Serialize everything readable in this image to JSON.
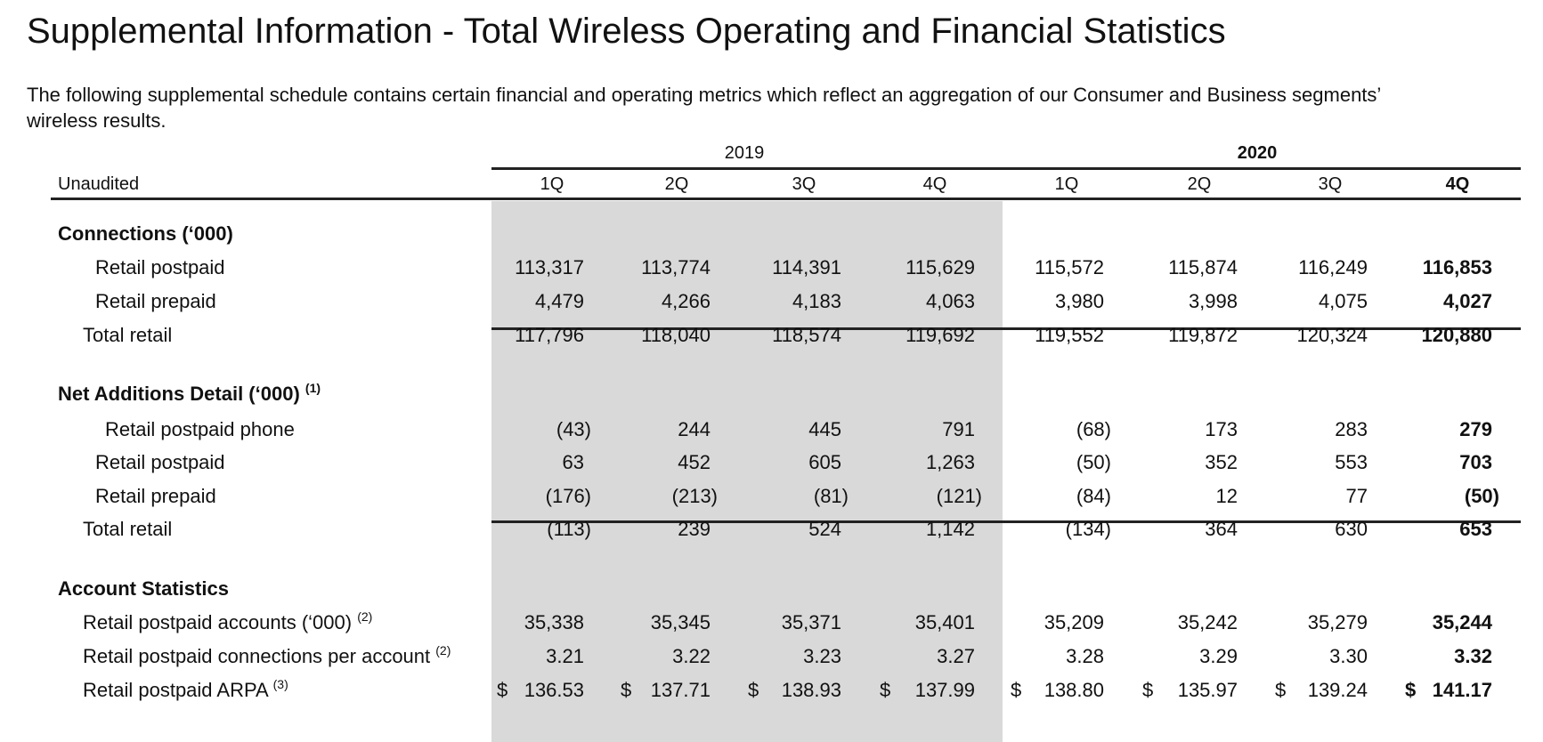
{
  "title": "Supplemental Information - Total Wireless Operating and Financial Statistics",
  "intro": {
    "line1": "The following supplemental schedule contains certain financial and operating metrics which reflect an aggregation of our Consumer and Business segments’",
    "line2": "wireless results."
  },
  "table": {
    "unaudited_label": "Unaudited",
    "years": [
      {
        "label": "2019",
        "bold": false
      },
      {
        "label": "2020",
        "bold": true
      }
    ],
    "quarters": [
      {
        "label": "1Q",
        "year": "2019",
        "bold": false
      },
      {
        "label": "2Q",
        "year": "2019",
        "bold": false
      },
      {
        "label": "3Q",
        "year": "2019",
        "bold": false
      },
      {
        "label": "4Q",
        "year": "2019",
        "bold": false
      },
      {
        "label": "1Q",
        "year": "2020",
        "bold": false
      },
      {
        "label": "2Q",
        "year": "2020",
        "bold": false
      },
      {
        "label": "3Q",
        "year": "2020",
        "bold": false
      },
      {
        "label": "4Q",
        "year": "2020",
        "bold": true
      }
    ],
    "shade_color": "#d9d9d9",
    "sections": [
      {
        "heading": "Connections (‘000)",
        "footnote": "",
        "rows": [
          {
            "label": "Retail postpaid",
            "footnote": "",
            "indent": 2,
            "values": [
              "113,317",
              "113,774",
              "114,391",
              "115,629",
              "115,572",
              "115,874",
              "116,249",
              "116,853"
            ]
          },
          {
            "label": "Retail prepaid",
            "footnote": "",
            "indent": 2,
            "values": [
              "4,479",
              "4,266",
              "4,183",
              "4,063",
              "3,980",
              "3,998",
              "4,075",
              "4,027"
            ],
            "underline": true
          },
          {
            "label": "Total retail",
            "footnote": "",
            "indent": 1,
            "values": [
              "117,796",
              "118,040",
              "118,574",
              "119,692",
              "119,552",
              "119,872",
              "120,324",
              "120,880"
            ]
          }
        ]
      },
      {
        "heading": "Net Additions Detail (‘000)",
        "footnote": "(1)",
        "rows": [
          {
            "label": "Retail postpaid phone",
            "footnote": "",
            "indent": 3,
            "values": [
              "(43)",
              "244",
              "445",
              "791",
              "(68)",
              "173",
              "283",
              "279"
            ]
          },
          {
            "label": "Retail postpaid",
            "footnote": "",
            "indent": 2,
            "values": [
              "63",
              "452",
              "605",
              "1,263",
              "(50)",
              "352",
              "553",
              "703"
            ]
          },
          {
            "label": "Retail prepaid",
            "footnote": "",
            "indent": 2,
            "values": [
              "(176)",
              "(213)",
              "(81)",
              "(121)",
              "(84)",
              "12",
              "77",
              "(50)"
            ],
            "underline": true
          },
          {
            "label": "Total retail",
            "footnote": "",
            "indent": 1,
            "values": [
              "(113)",
              "239",
              "524",
              "1,142",
              "(134)",
              "364",
              "630",
              "653"
            ]
          }
        ]
      },
      {
        "heading": "Account Statistics",
        "footnote": "",
        "rows": [
          {
            "label": "Retail postpaid accounts (‘000)",
            "footnote": "(2)",
            "indent": 1,
            "values": [
              "35,338",
              "35,345",
              "35,371",
              "35,401",
              "35,209",
              "35,242",
              "35,279",
              "35,244"
            ]
          },
          {
            "label": "Retail postpaid connections per account",
            "footnote": "(2)",
            "indent": 1,
            "values": [
              "3.21",
              "3.22",
              "3.23",
              "3.27",
              "3.28",
              "3.29",
              "3.30",
              "3.32"
            ]
          },
          {
            "label": "Retail postpaid ARPA",
            "footnote": "(3)",
            "indent": 1,
            "currency": "$",
            "values": [
              "136.53",
              "137.71",
              "138.93",
              "137.99",
              "138.80",
              "135.97",
              "139.24",
              "141.17"
            ]
          }
        ]
      }
    ]
  }
}
